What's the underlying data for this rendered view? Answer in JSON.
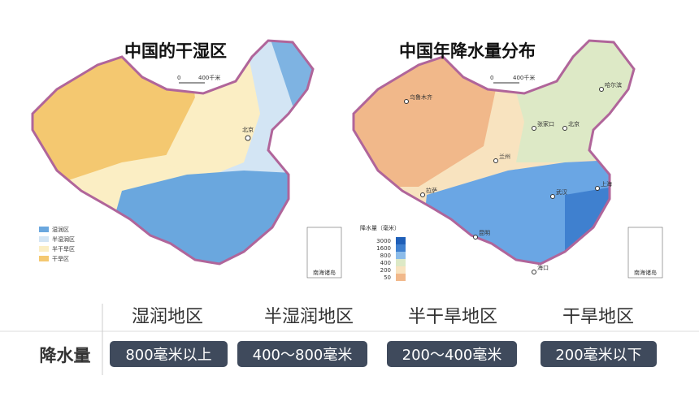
{
  "left_map": {
    "title": "中国的干湿区",
    "scale": {
      "zero": "0",
      "length": "400千米"
    },
    "city": "北京",
    "legend": [
      "湿润区",
      "半湿润区",
      "半干旱区",
      "干旱区"
    ],
    "inset": "南海诸岛"
  },
  "right_map": {
    "title": "中国年降水量分布",
    "scale": {
      "zero": "0",
      "length": "400千米"
    },
    "cities": [
      "乌鲁木齐",
      "哈尔滨",
      "张家口",
      "北京",
      "兰州",
      "拉萨",
      "武汉",
      "上海",
      "昆明",
      "海口"
    ],
    "legend_title": "降水量（毫米）",
    "legend_levels": [
      "3000",
      "1600",
      "800",
      "400",
      "200",
      "50"
    ],
    "inset": "南海诸岛"
  },
  "table": {
    "columns": [
      "湿润地区",
      "半湿润地区",
      "半干旱地区",
      "干旱地区"
    ],
    "row_header": "降水量",
    "cells": [
      "800毫米以上",
      "400～800毫米",
      "200～400毫米",
      "200毫米以下"
    ]
  }
}
